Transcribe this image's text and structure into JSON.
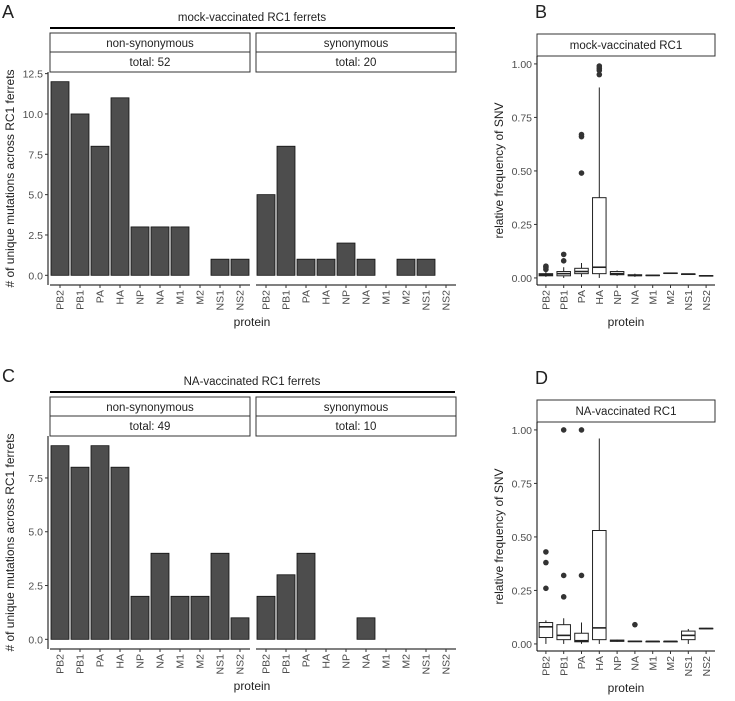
{
  "chart_data": [
    {
      "type": "bar",
      "panel": "A",
      "title": "mock-vaccinated RC1 ferrets",
      "xlabel": "protein",
      "ylabel": "# of unique mutations across RC1 ferrets",
      "categories": [
        "PB2",
        "PB1",
        "PA",
        "HA",
        "NP",
        "NA",
        "M1",
        "M2",
        "NS1",
        "NS2"
      ],
      "ylim": [
        -0.6,
        12.6
      ],
      "yticks": [
        {
          "value": 0,
          "label": "0.0"
        },
        2.5,
        {
          "value": 5,
          "label": "5.0"
        },
        7.5,
        {
          "value": 10,
          "label": "10.0"
        },
        12.5
      ],
      "color": "#4d4d4d",
      "facets": [
        {
          "name": "non-synonymous",
          "subtitle": "total: 52",
          "values": [
            12,
            10,
            8,
            11,
            3,
            3,
            3,
            0,
            1,
            1
          ]
        },
        {
          "name": "synonymous",
          "subtitle": "total: 20",
          "values": [
            5,
            8,
            1,
            1,
            2,
            1,
            0,
            1,
            1,
            0
          ]
        }
      ]
    },
    {
      "type": "box",
      "panel": "B",
      "title": "mock-vaccinated RC1",
      "xlabel": "protein",
      "ylabel": "relative frequency of SNV",
      "categories": [
        "PB2",
        "PB1",
        "PA",
        "HA",
        "NP",
        "NA",
        "M1",
        "M2",
        "NS1",
        "NS2"
      ],
      "ylim": [
        -0.033,
        1.037
      ],
      "yticks": [
        {
          "value": 0,
          "label": "0.00"
        },
        0.25,
        {
          "value": 0.5,
          "label": "0.50"
        },
        0.75,
        {
          "value": 1,
          "label": "1.00"
        }
      ],
      "low": [
        0.005,
        0,
        0.005,
        0,
        0.01,
        0.005,
        0.01,
        0.02,
        0.015,
        0.008
      ],
      "q1": [
        0.01,
        0.01,
        0.02,
        0.02,
        0.015,
        0.01,
        0.011,
        0.021,
        0.016,
        0.009
      ],
      "median": [
        0.015,
        0.02,
        0.03,
        0.05,
        0.02,
        0.012,
        0.012,
        0.022,
        0.018,
        0.01
      ],
      "q3": [
        0.02,
        0.03,
        0.045,
        0.375,
        0.03,
        0.015,
        0.013,
        0.023,
        0.019,
        0.011
      ],
      "high": [
        0.03,
        0.05,
        0.07,
        0.89,
        0.035,
        0.02,
        0.014,
        0.024,
        0.02,
        0.012
      ],
      "outliers": [
        [
          0.04,
          0.05,
          0.055
        ],
        [
          0.08,
          0.11
        ],
        [
          0.49,
          0.66,
          0.67
        ],
        [
          0.95,
          0.97,
          0.98,
          0.99
        ],
        [],
        [],
        [],
        [],
        [],
        []
      ]
    },
    {
      "type": "bar",
      "panel": "C",
      "title": "NA-vaccinated RC1 ferrets",
      "xlabel": "protein",
      "ylabel": "# of unique mutations across RC1 ferrets",
      "categories": [
        "PB2",
        "PB1",
        "PA",
        "HA",
        "NP",
        "NA",
        "M1",
        "M2",
        "NS1",
        "NS2"
      ],
      "ylim": [
        -0.45,
        9.45
      ],
      "yticks": [
        {
          "value": 0,
          "label": "0.0"
        },
        2.5,
        {
          "value": 5,
          "label": "5.0"
        },
        7.5
      ],
      "color": "#4d4d4d",
      "facets": [
        {
          "name": "non-synonymous",
          "subtitle": "total: 49",
          "values": [
            9,
            8,
            9,
            8,
            2,
            4,
            2,
            2,
            4,
            1
          ]
        },
        {
          "name": "synonymous",
          "subtitle": "total: 10",
          "values": [
            2,
            3,
            4,
            0,
            0,
            1,
            0,
            0,
            0,
            0
          ]
        }
      ]
    },
    {
      "type": "box",
      "panel": "D",
      "title": "NA-vaccinated RC1",
      "xlabel": "protein",
      "ylabel": "relative frequency of SNV",
      "categories": [
        "PB2",
        "PB1",
        "PA",
        "HA",
        "NP",
        "NA",
        "M1",
        "M2",
        "NS1",
        "NS2"
      ],
      "ylim": [
        -0.033,
        1.037
      ],
      "yticks": [
        {
          "value": 0,
          "label": "0.00"
        },
        0.25,
        {
          "value": 0.5,
          "label": "0.50"
        },
        0.75,
        {
          "value": 1,
          "label": "1.00"
        }
      ],
      "low": [
        0,
        0,
        0,
        0,
        0.01,
        0.01,
        0.012,
        0.012,
        0,
        0.07
      ],
      "q1": [
        0.03,
        0.02,
        0.01,
        0.02,
        0.012,
        0.011,
        0.012,
        0.012,
        0.02,
        0.071
      ],
      "median": [
        0.08,
        0.04,
        0.015,
        0.075,
        0.015,
        0.012,
        0.012,
        0.012,
        0.04,
        0.072
      ],
      "q3": [
        0.1,
        0.09,
        0.05,
        0.53,
        0.018,
        0.013,
        0.012,
        0.012,
        0.06,
        0.073
      ],
      "high": [
        0.11,
        0.12,
        0.1,
        0.96,
        0.02,
        0.015,
        0.012,
        0.012,
        0.07,
        0.075
      ],
      "outliers": [
        [
          0.26,
          0.38,
          0.43
        ],
        [
          0.22,
          0.32,
          1.0
        ],
        [
          0.32,
          1.0
        ],
        [],
        [],
        [
          0.09
        ],
        [],
        [],
        [],
        []
      ]
    }
  ]
}
